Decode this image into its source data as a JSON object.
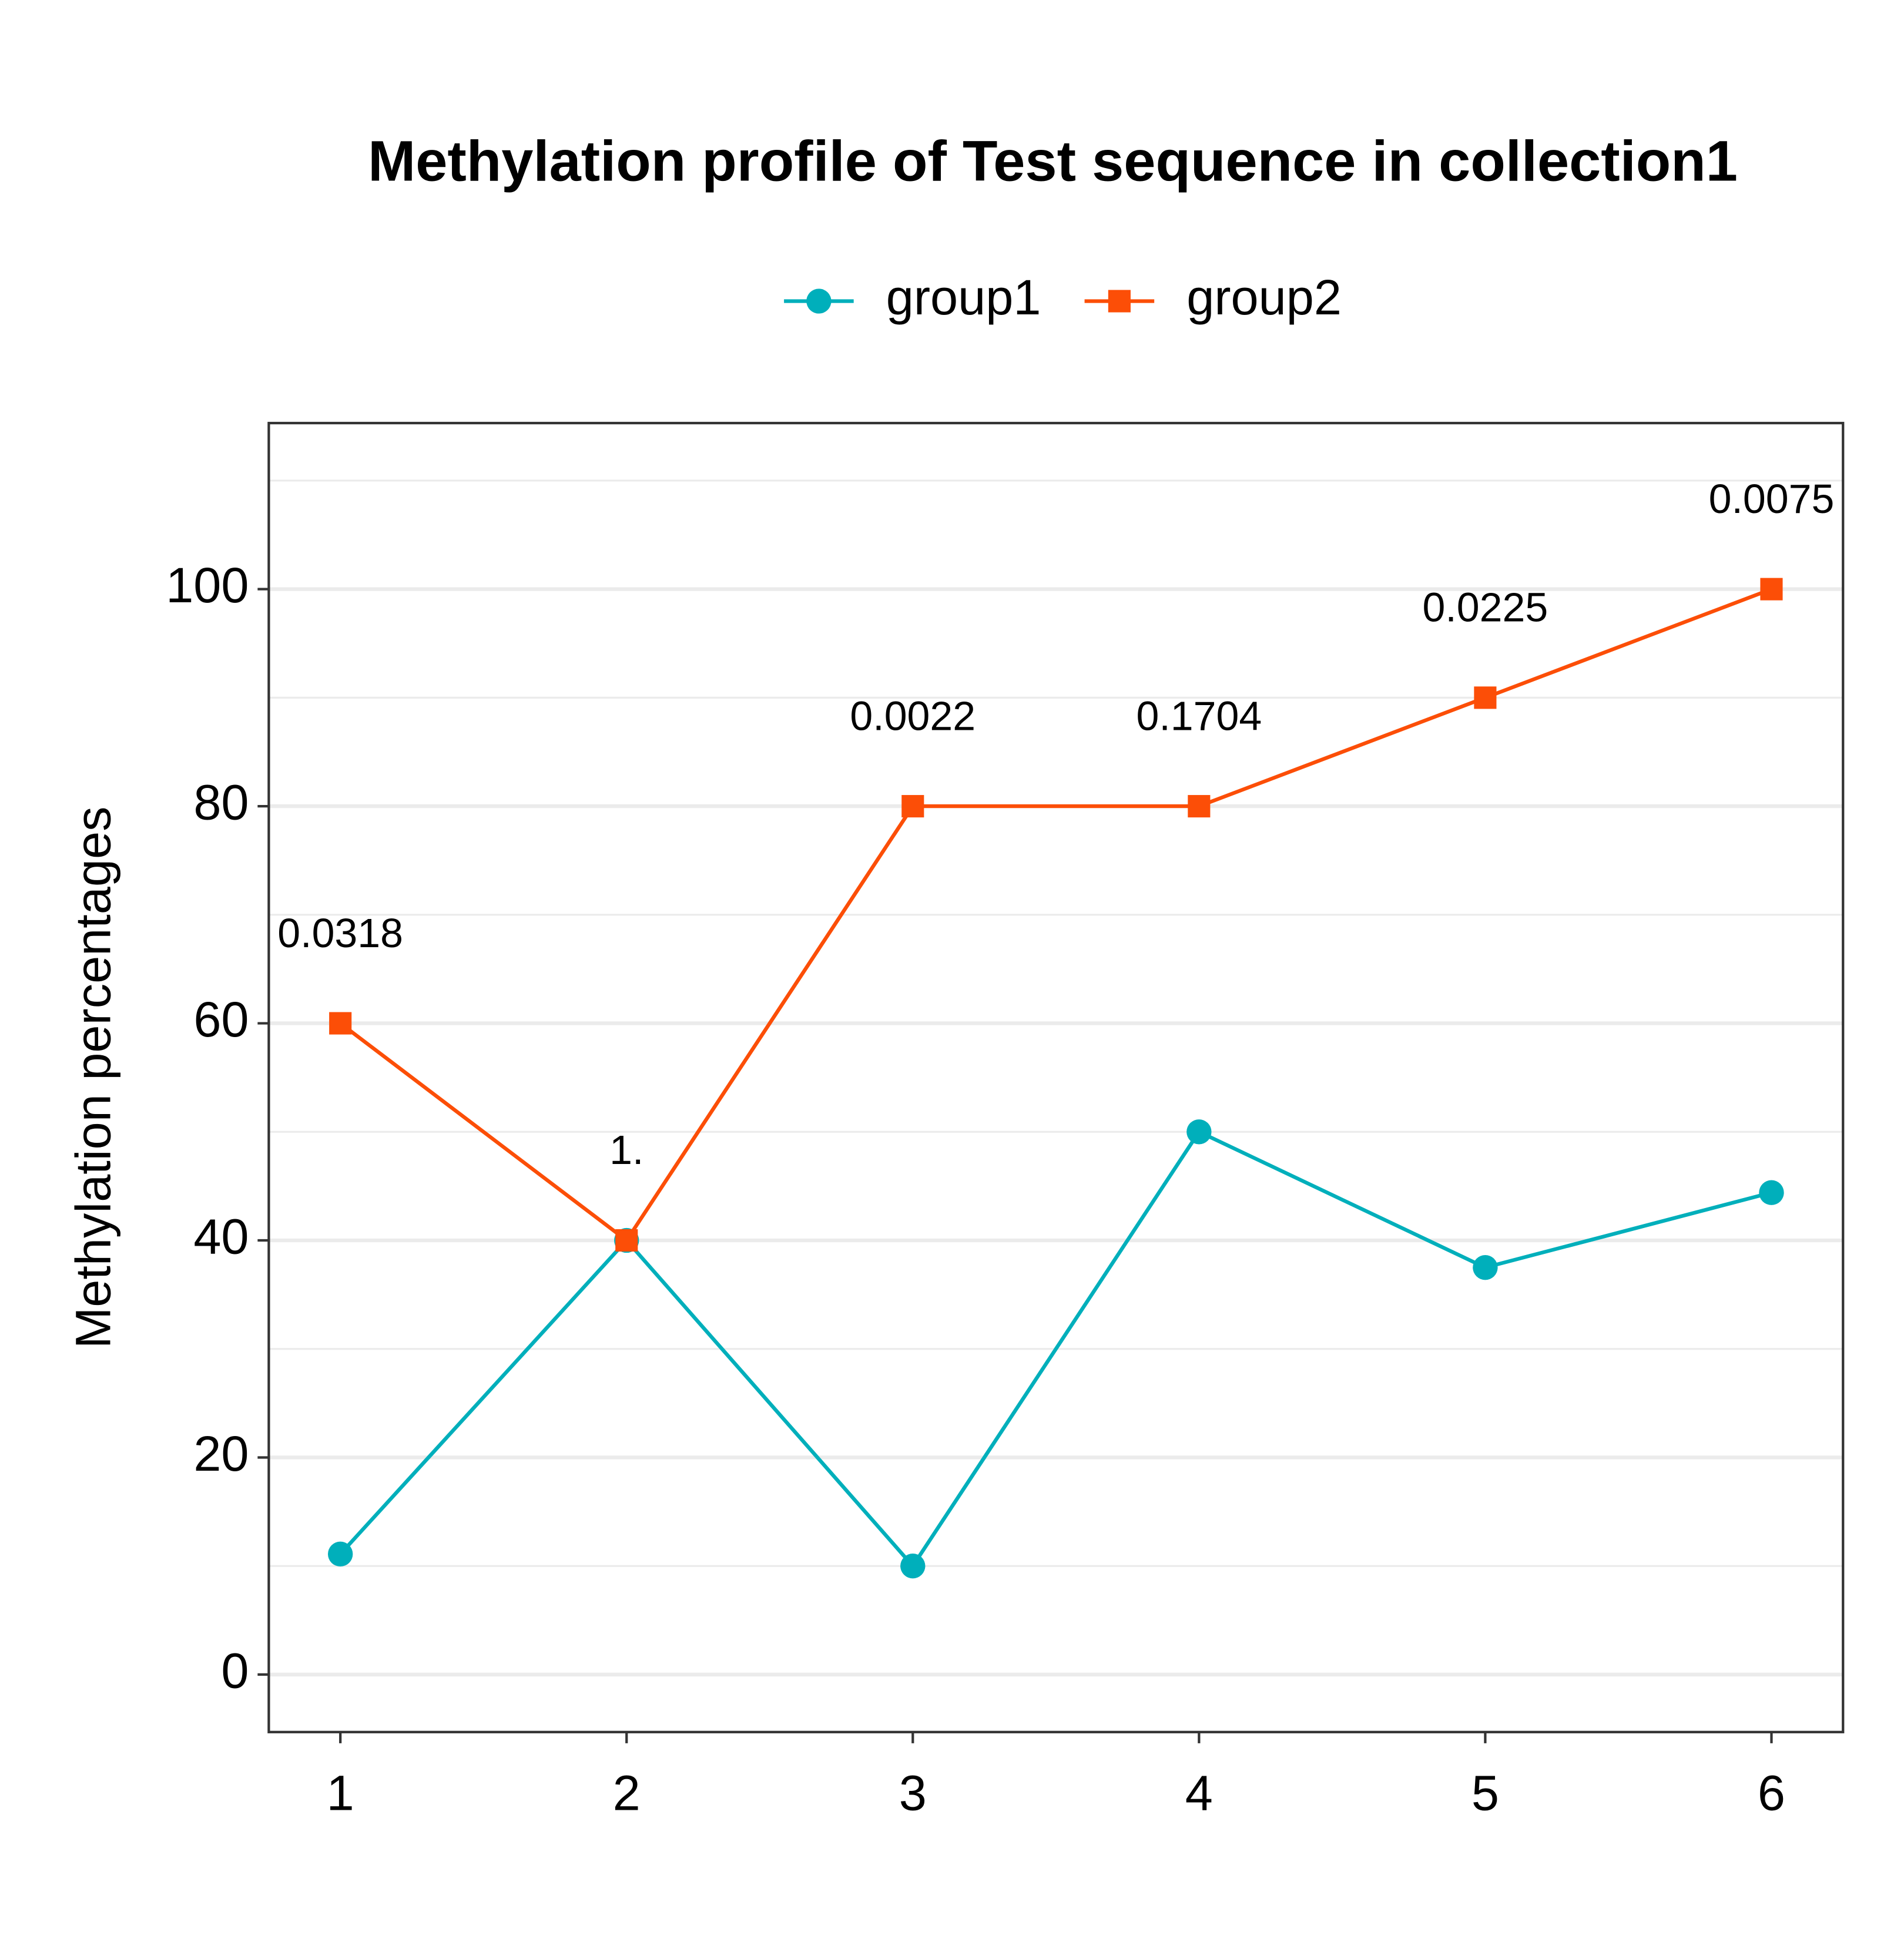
{
  "chart_data": {
    "type": "line",
    "title": "Methylation profile of Test sequence in collection1",
    "y_label": "Methylation percentages",
    "x": [
      1,
      2,
      3,
      4,
      5,
      6
    ],
    "series": [
      {
        "name": "group1",
        "color": "#00AFBB",
        "marker": "circle",
        "values": [
          11.1,
          40,
          10,
          50,
          37.5,
          44.4
        ]
      },
      {
        "name": "group2",
        "color": "#FC4E07",
        "marker": "square",
        "values": [
          60,
          40,
          80,
          80,
          90,
          100
        ]
      }
    ],
    "annotations": [
      "0.0318",
      "1.",
      "0.0022",
      "0.1704",
      "0.0225",
      "0.0075"
    ],
    "xlim": [
      0.75,
      6.25
    ],
    "xticks": [
      1,
      2,
      3,
      4,
      5,
      6
    ],
    "ylim": [
      -5.3,
      115.3
    ],
    "yticks": [
      0,
      20,
      40,
      60,
      80,
      100
    ],
    "grid": true,
    "legend": "top"
  }
}
